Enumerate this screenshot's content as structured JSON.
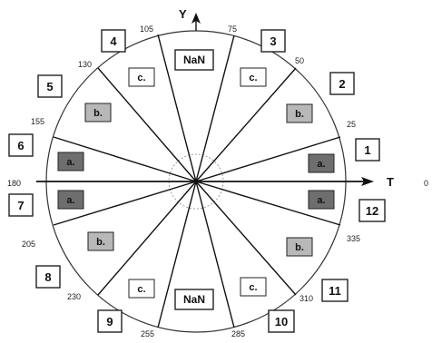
{
  "axes": {
    "x_label": "T",
    "y_label": "Y",
    "x_end": "0"
  },
  "degrees": [
    "25",
    "50",
    "75",
    "105",
    "130",
    "155",
    "180",
    "205",
    "230",
    "255",
    "285",
    "310",
    "335"
  ],
  "sector_numbers": [
    "1",
    "2",
    "3",
    "4",
    "5",
    "6",
    "7",
    "8",
    "9",
    "10",
    "11",
    "12"
  ],
  "region_labels": {
    "a": "a.",
    "b": "b.",
    "c": "c.",
    "nan": "NaN"
  },
  "colors": {
    "a_fill": "#6e6e6e",
    "b_fill": "#b8b8b8",
    "c_fill": "#ffffff",
    "line": "#111111"
  }
}
